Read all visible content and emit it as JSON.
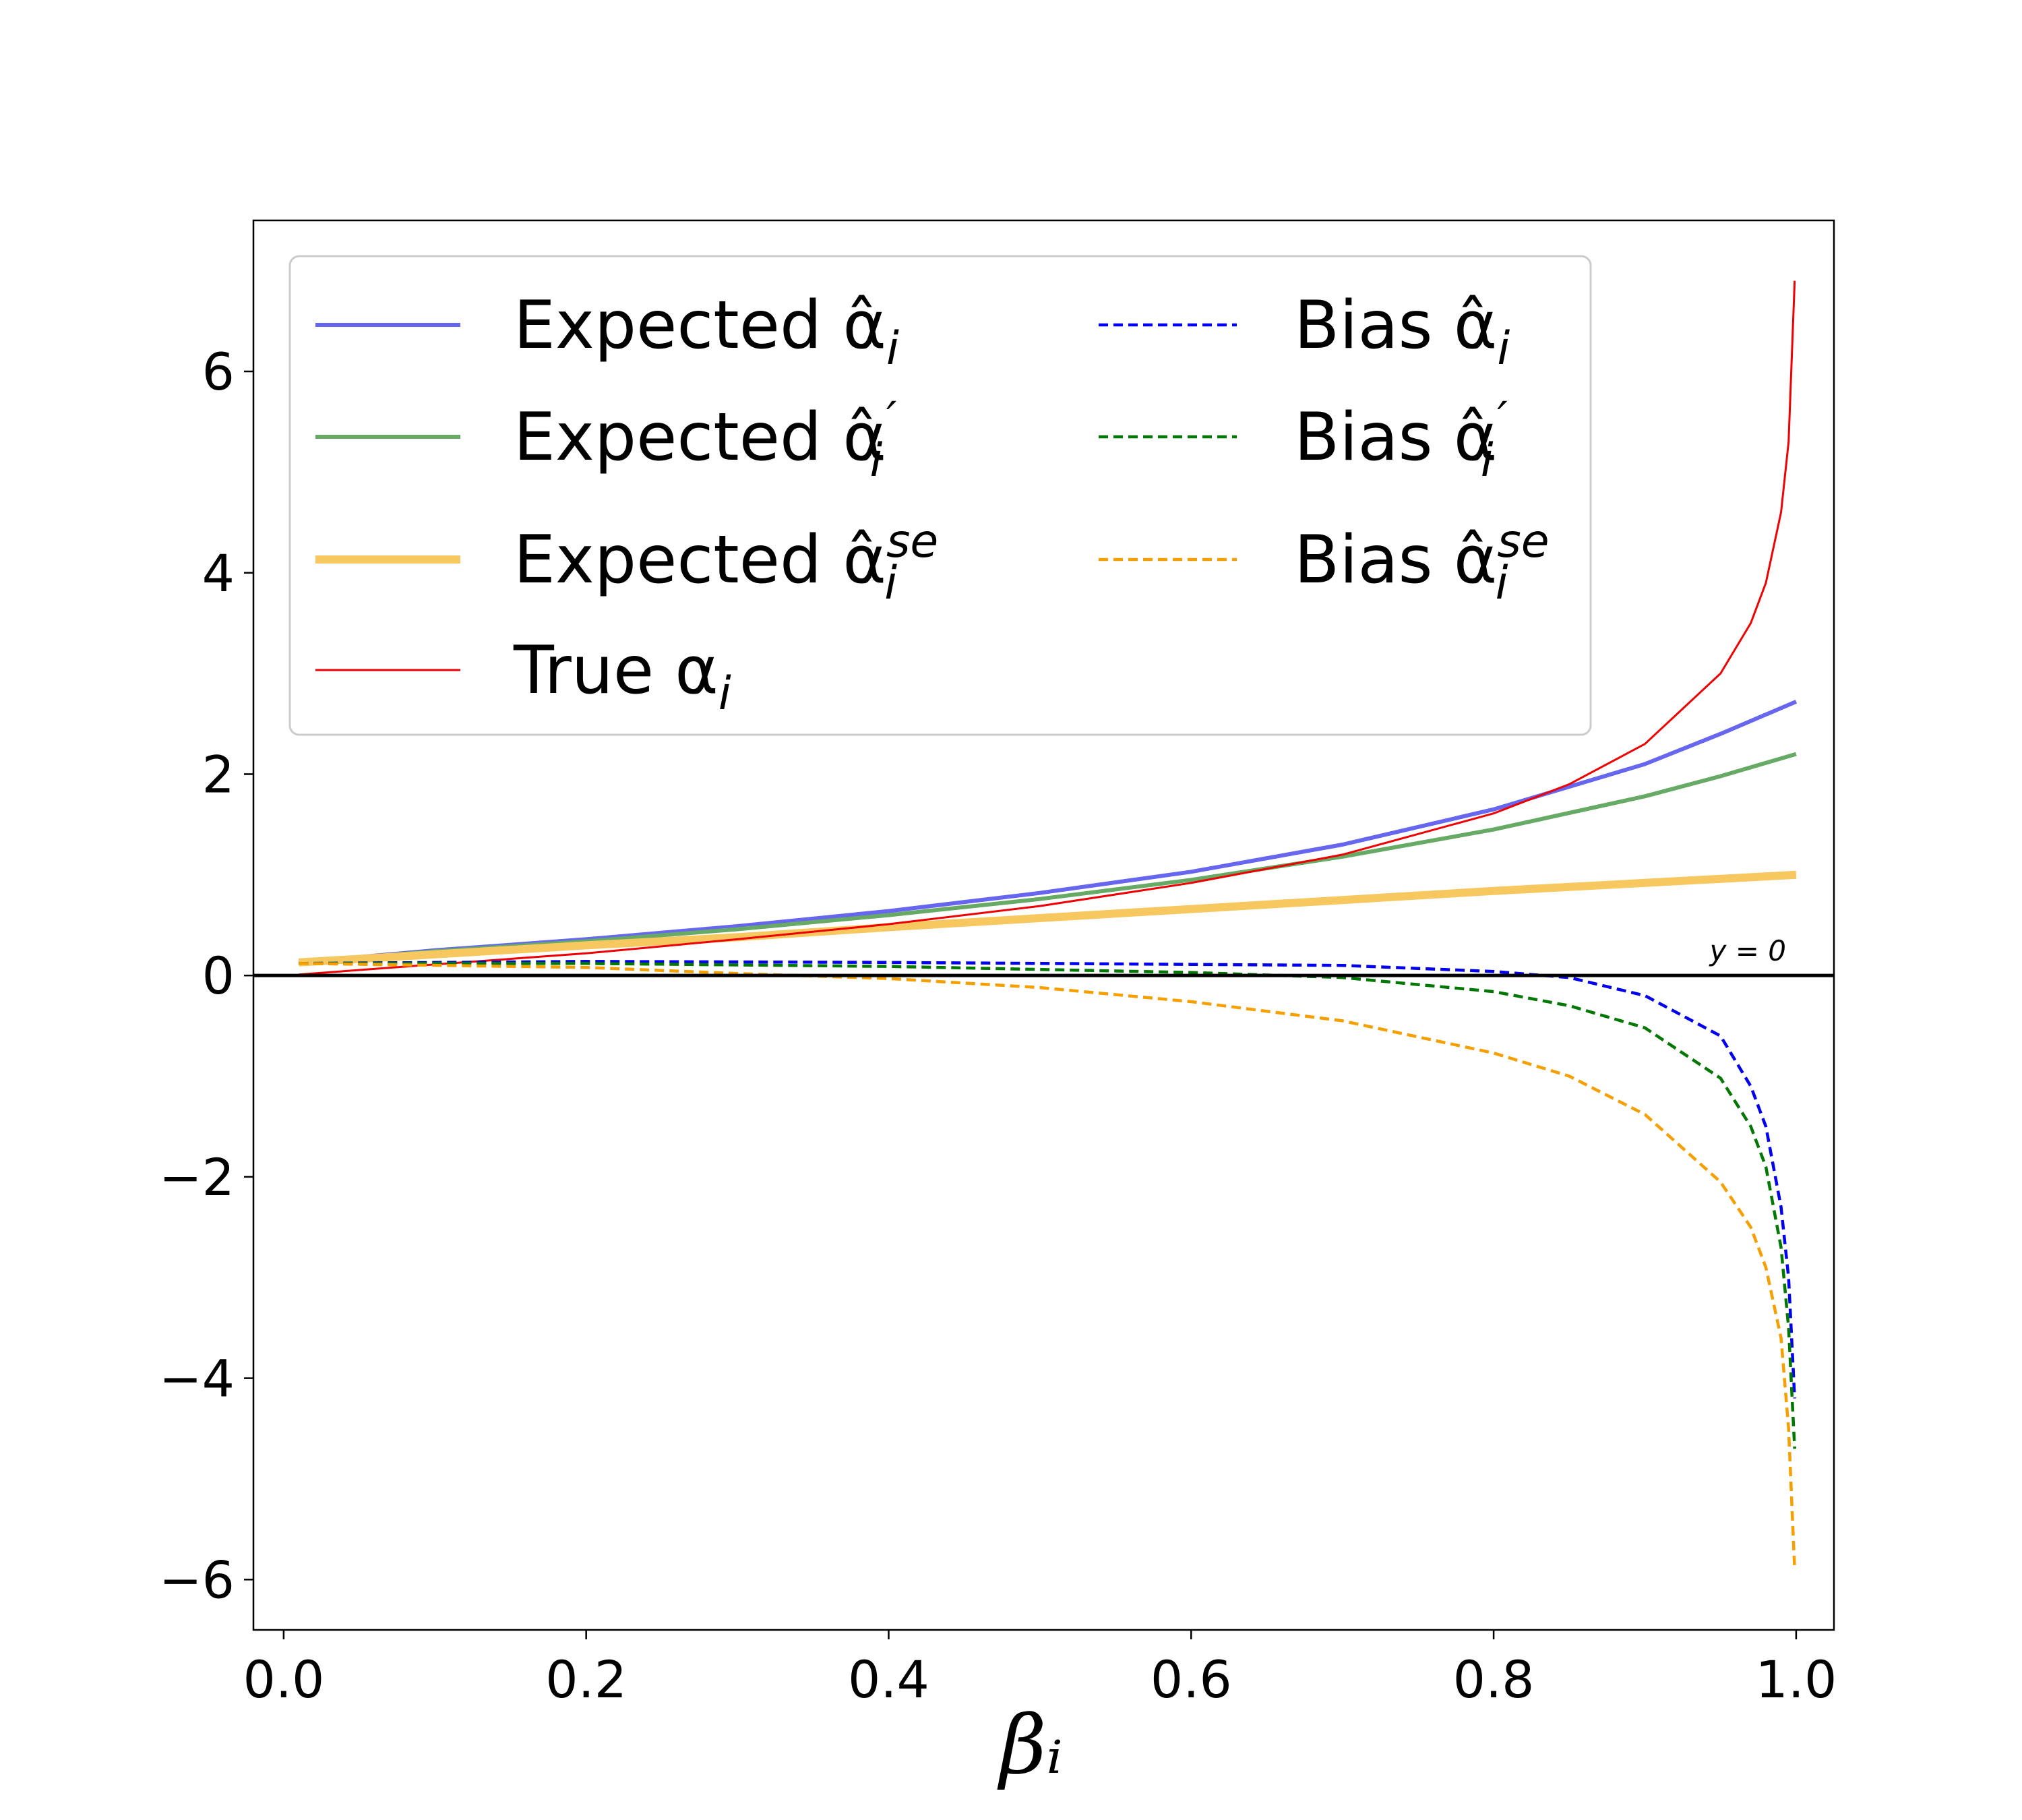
{
  "chart_data": {
    "type": "line",
    "title": "",
    "xlabel": "βᵢ",
    "ylabel": "",
    "xlim": [
      -0.02,
      1.025
    ],
    "ylim": [
      -6.5,
      7.5
    ],
    "xticks": [
      "0.0",
      "0.2",
      "0.4",
      "0.6",
      "0.8",
      "1.0"
    ],
    "yticks": [
      "−6",
      "−4",
      "−2",
      "0",
      "2",
      "4",
      "6"
    ],
    "grid": false,
    "legend_position": "top-left",
    "annotation": "y = 0",
    "series": [
      {
        "name": "Expected α̂ᵢ",
        "legend_main": "Expected α̂",
        "legend_sub": "i",
        "legend_sup": "",
        "color": "#6666ee",
        "style": "solid",
        "x": [
          0.01,
          0.1,
          0.2,
          0.3,
          0.4,
          0.5,
          0.6,
          0.7,
          0.8,
          0.9,
          0.95,
          1.0
        ],
        "y": [
          0.13,
          0.25,
          0.36,
          0.49,
          0.64,
          0.82,
          1.03,
          1.3,
          1.65,
          2.1,
          2.4,
          2.72
        ]
      },
      {
        "name": "Expected α̂′ᵢ",
        "legend_main": "Expected α̂",
        "legend_sub": "i",
        "legend_sup": "′",
        "color": "#66aa66",
        "style": "solid",
        "x": [
          0.01,
          0.1,
          0.2,
          0.3,
          0.4,
          0.5,
          0.6,
          0.7,
          0.8,
          0.9,
          0.95,
          1.0
        ],
        "y": [
          0.13,
          0.24,
          0.34,
          0.46,
          0.6,
          0.76,
          0.95,
          1.18,
          1.45,
          1.78,
          1.98,
          2.2
        ]
      },
      {
        "name": "Expected α̂ᵢˢᵉ",
        "legend_main": "Expected α̂",
        "legend_sub": "i",
        "legend_sup": "se",
        "color": "#f8c860",
        "style": "thick",
        "x": [
          0.01,
          0.1,
          0.2,
          0.3,
          0.4,
          0.5,
          0.6,
          0.7,
          0.8,
          0.9,
          1.0
        ],
        "y": [
          0.13,
          0.21,
          0.3,
          0.38,
          0.48,
          0.57,
          0.66,
          0.75,
          0.84,
          0.92,
          1.0
        ]
      },
      {
        "name": "True αᵢ",
        "legend_main": "True α",
        "legend_sub": "i",
        "legend_sup": "",
        "color": "#ee0000",
        "style": "thin",
        "x": [
          0.01,
          0.1,
          0.2,
          0.3,
          0.4,
          0.5,
          0.6,
          0.7,
          0.8,
          0.85,
          0.9,
          0.95,
          0.97,
          0.98,
          0.99,
          0.995,
          0.999
        ],
        "y": [
          0.01,
          0.11,
          0.22,
          0.36,
          0.51,
          0.69,
          0.92,
          1.2,
          1.61,
          1.9,
          2.3,
          3.0,
          3.5,
          3.9,
          4.6,
          5.3,
          6.9
        ]
      },
      {
        "name": "Bias α̂ᵢ",
        "legend_main": "Bias α̂",
        "legend_sub": "i",
        "legend_sup": "",
        "color": "#0000ee",
        "style": "dashed",
        "x": [
          0.01,
          0.2,
          0.4,
          0.6,
          0.7,
          0.8,
          0.85,
          0.9,
          0.95,
          0.97,
          0.98,
          0.99,
          0.995,
          0.999
        ],
        "y": [
          0.12,
          0.14,
          0.13,
          0.11,
          0.1,
          0.04,
          -0.02,
          -0.2,
          -0.6,
          -1.1,
          -1.5,
          -2.3,
          -3.0,
          -4.2
        ]
      },
      {
        "name": "Bias α̂′ᵢ",
        "legend_main": "Bias α̂",
        "legend_sub": "i",
        "legend_sup": "′",
        "color": "#007700",
        "style": "dashed",
        "x": [
          0.01,
          0.2,
          0.4,
          0.6,
          0.7,
          0.8,
          0.85,
          0.9,
          0.95,
          0.97,
          0.98,
          0.99,
          0.995,
          0.999
        ],
        "y": [
          0.12,
          0.12,
          0.09,
          0.03,
          -0.02,
          -0.16,
          -0.3,
          -0.52,
          -1.02,
          -1.5,
          -1.9,
          -2.7,
          -3.5,
          -4.7
        ]
      },
      {
        "name": "Bias α̂ᵢˢᵉ",
        "legend_main": "Bias α̂",
        "legend_sub": "i",
        "legend_sup": "se",
        "color": "#f5a000",
        "style": "dashed",
        "x": [
          0.01,
          0.2,
          0.3,
          0.4,
          0.5,
          0.6,
          0.7,
          0.8,
          0.85,
          0.9,
          0.95,
          0.97,
          0.98,
          0.99,
          0.995,
          0.999
        ],
        "y": [
          0.12,
          0.08,
          0.02,
          -0.03,
          -0.12,
          -0.26,
          -0.45,
          -0.77,
          -1.0,
          -1.38,
          -2.05,
          -2.5,
          -2.9,
          -3.6,
          -4.5,
          -5.9
        ]
      }
    ]
  }
}
